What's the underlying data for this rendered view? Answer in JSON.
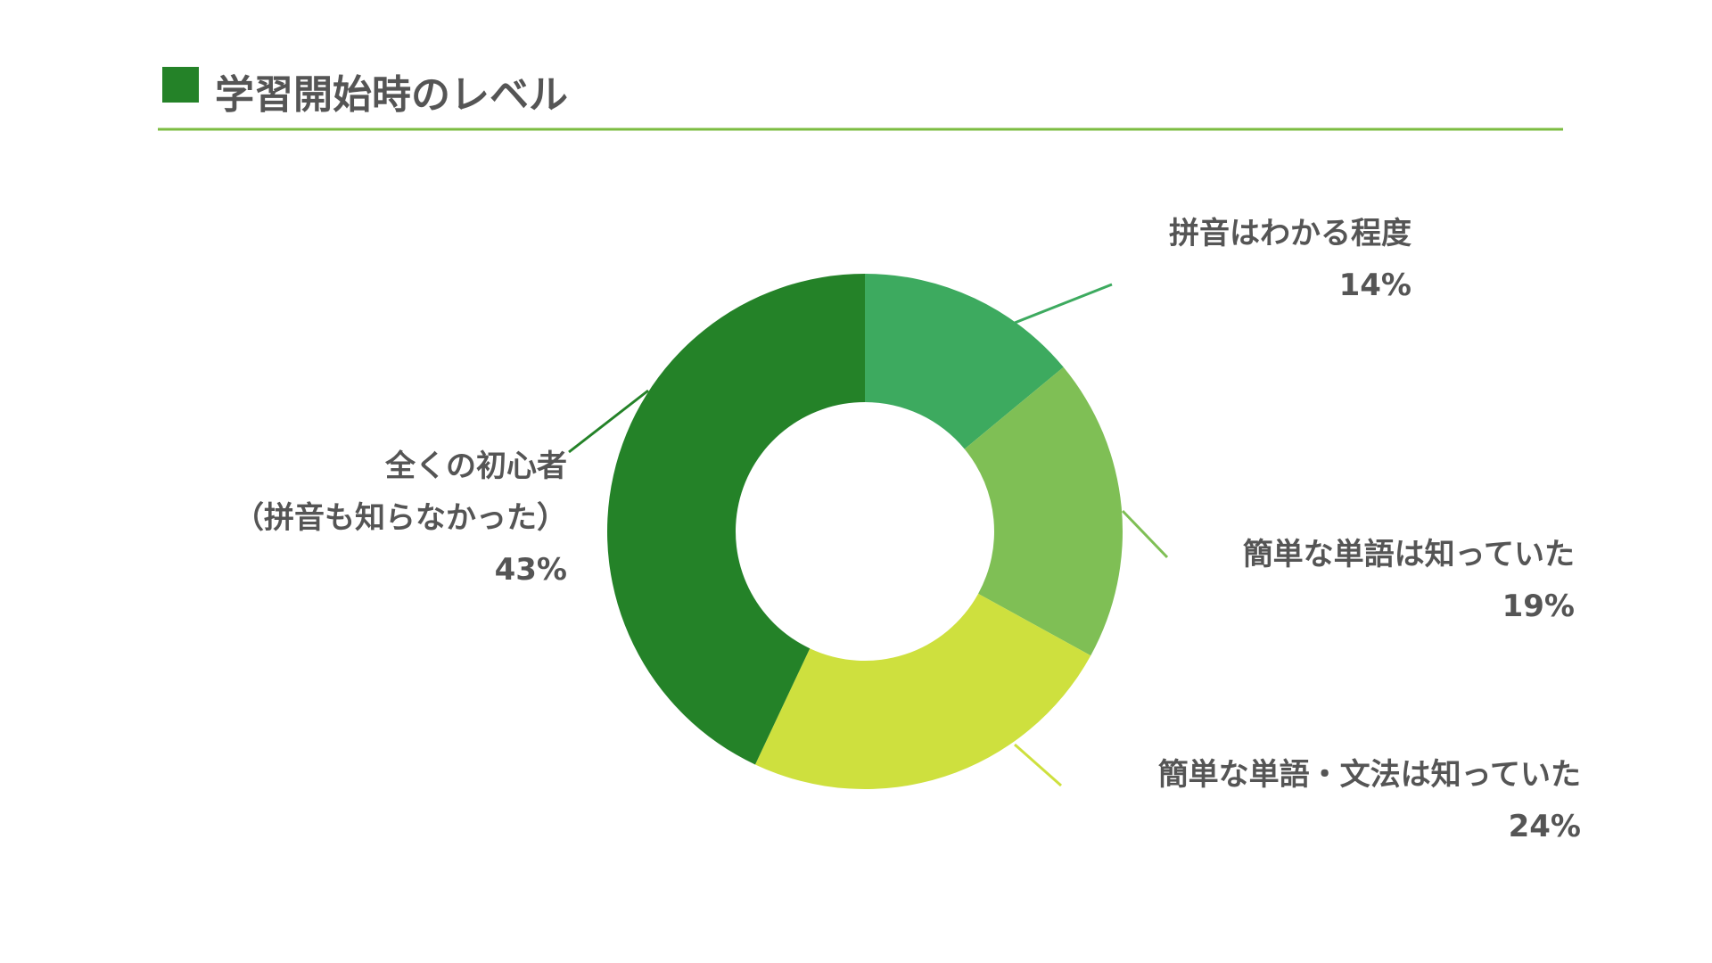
{
  "chart_data": {
    "type": "donut",
    "title": "学習開始時のレベル",
    "categories": [
      "拼音はわかる程度",
      "簡単な単語は知っていた",
      "簡単な単語・文法は知っていた",
      "全くの初心者\n（拼音も知らなかった）"
    ],
    "values": [
      14,
      19,
      24,
      43
    ],
    "value_labels": [
      "14%",
      "19%",
      "24%",
      "43%"
    ],
    "colors": [
      "#3daa5f",
      "#7fbf55",
      "#cee03e",
      "#248228"
    ]
  }
}
